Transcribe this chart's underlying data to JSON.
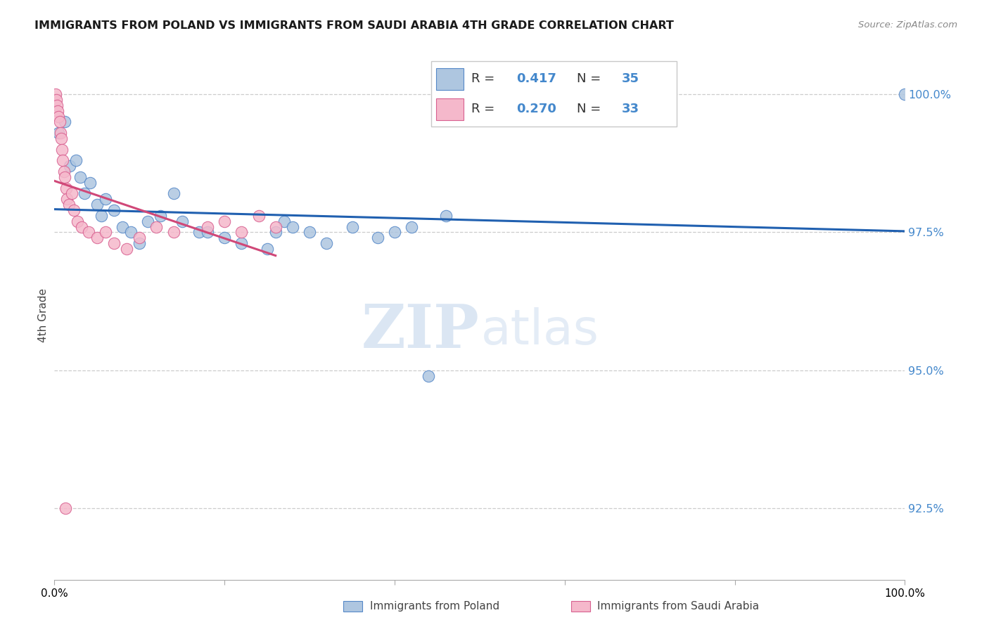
{
  "title": "IMMIGRANTS FROM POLAND VS IMMIGRANTS FROM SAUDI ARABIA 4TH GRADE CORRELATION CHART",
  "source": "Source: ZipAtlas.com",
  "ylabel": "4th Grade",
  "ytick_values": [
    100.0,
    97.5,
    95.0,
    92.5
  ],
  "watermark_zip": "ZIP",
  "watermark_atlas": "atlas",
  "legend_r1": "0.417",
  "legend_n1": "35",
  "legend_r2": "0.270",
  "legend_n2": "33",
  "legend_label1": "Immigrants from Poland",
  "legend_label2": "Immigrants from Saudi Arabia",
  "blue_color": "#aec6e0",
  "blue_edge_color": "#5588c8",
  "blue_line_color": "#2060b0",
  "pink_color": "#f5b8cb",
  "pink_edge_color": "#d86090",
  "pink_line_color": "#d04878",
  "blue_scatter_x": [
    0.5,
    1.2,
    1.8,
    2.5,
    3.0,
    3.5,
    4.2,
    5.0,
    5.5,
    6.0,
    7.0,
    8.0,
    9.0,
    10.0,
    11.0,
    12.5,
    14.0,
    15.0,
    17.0,
    18.0,
    20.0,
    22.0,
    25.0,
    26.0,
    27.0,
    28.0,
    30.0,
    32.0,
    35.0,
    38.0,
    40.0,
    42.0,
    44.0,
    46.0,
    100.0
  ],
  "blue_scatter_y": [
    99.3,
    99.5,
    98.7,
    98.8,
    98.5,
    98.2,
    98.4,
    98.0,
    97.8,
    98.1,
    97.9,
    97.6,
    97.5,
    97.3,
    97.7,
    97.8,
    98.2,
    97.7,
    97.5,
    97.5,
    97.4,
    97.3,
    97.2,
    97.5,
    97.7,
    97.6,
    97.5,
    97.3,
    97.6,
    97.4,
    97.5,
    97.6,
    94.9,
    97.8,
    100.0
  ],
  "pink_scatter_x": [
    0.1,
    0.2,
    0.3,
    0.4,
    0.5,
    0.6,
    0.7,
    0.8,
    0.9,
    1.0,
    1.1,
    1.2,
    1.4,
    1.5,
    1.7,
    2.0,
    2.3,
    2.7,
    3.2,
    4.0,
    5.0,
    6.0,
    7.0,
    8.5,
    10.0,
    12.0,
    14.0,
    18.0,
    20.0,
    22.0,
    24.0,
    26.0,
    1.3
  ],
  "pink_scatter_y": [
    100.0,
    99.9,
    99.8,
    99.7,
    99.6,
    99.5,
    99.3,
    99.2,
    99.0,
    98.8,
    98.6,
    98.5,
    98.3,
    98.1,
    98.0,
    98.2,
    97.9,
    97.7,
    97.6,
    97.5,
    97.4,
    97.5,
    97.3,
    97.2,
    97.4,
    97.6,
    97.5,
    97.6,
    97.7,
    97.5,
    97.8,
    97.6,
    92.5
  ],
  "xlim_min": 0.0,
  "xlim_max": 100.0,
  "ylim_min": 91.2,
  "ylim_max": 100.8,
  "blue_trendline_x": [
    0.0,
    100.0
  ],
  "pink_trendline_x": [
    0.0,
    26.0
  ]
}
